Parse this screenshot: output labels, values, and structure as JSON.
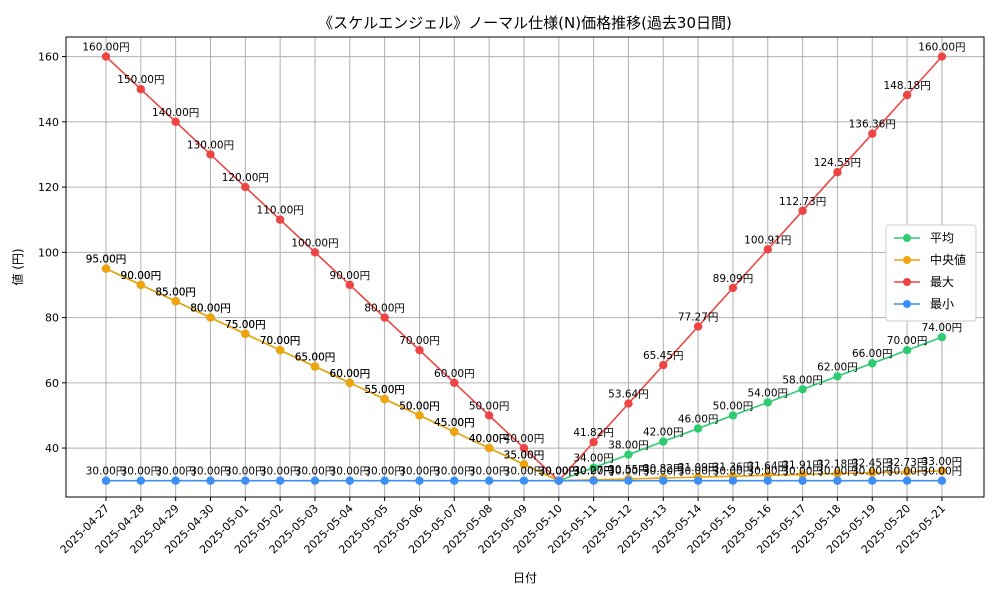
{
  "chart_data": {
    "type": "line",
    "title": "《スケルエンジェル》ノーマル仕様(N)価格推移(過去30日間)",
    "xlabel": "日付",
    "ylabel": "値 (円)",
    "ylim": [
      25,
      166
    ],
    "yticks": [
      40,
      60,
      80,
      100,
      120,
      140,
      160
    ],
    "label_suffix": "円",
    "categories": [
      "2025-04-27",
      "2025-04-28",
      "2025-04-29",
      "2025-04-30",
      "2025-05-01",
      "2025-05-02",
      "2025-05-03",
      "2025-05-04",
      "2025-05-05",
      "2025-05-06",
      "2025-05-07",
      "2025-05-08",
      "2025-05-09",
      "2025-05-10",
      "2025-05-11",
      "2025-05-12",
      "2025-05-13",
      "2025-05-14",
      "2025-05-15",
      "2025-05-16",
      "2025-05-17",
      "2025-05-18",
      "2025-05-19",
      "2025-05-20",
      "2025-05-21"
    ],
    "grid": true,
    "legend_position": "center-right",
    "series": [
      {
        "name": "平均",
        "color": "#2ecc71",
        "values": [
          95,
          90,
          85,
          80,
          75,
          70,
          65,
          60,
          55,
          50,
          45,
          40,
          35,
          30,
          34,
          38,
          42,
          46,
          50,
          54,
          58,
          62,
          66,
          70,
          74
        ]
      },
      {
        "name": "中央値",
        "color": "#f0a30a",
        "values": [
          95,
          90,
          85,
          80,
          75,
          70,
          65,
          60,
          55,
          50,
          45,
          40,
          35,
          30,
          30.27,
          30.55,
          30.82,
          31.09,
          31.36,
          31.64,
          31.91,
          32.18,
          32.45,
          32.73,
          33
        ]
      },
      {
        "name": "最大",
        "color": "#ef4444",
        "values": [
          160,
          150,
          140,
          130,
          120,
          110,
          100,
          90,
          80,
          70,
          60,
          50,
          40,
          30,
          41.82,
          53.64,
          65.45,
          77.27,
          89.09,
          100.91,
          112.73,
          124.55,
          136.36,
          148.18,
          160
        ]
      },
      {
        "name": "最小",
        "color": "#3b8ff5",
        "values": [
          30,
          30,
          30,
          30,
          30,
          30,
          30,
          30,
          30,
          30,
          30,
          30,
          30,
          30,
          30,
          30,
          30,
          30,
          30,
          30,
          30,
          30,
          30,
          30,
          30
        ]
      }
    ]
  }
}
